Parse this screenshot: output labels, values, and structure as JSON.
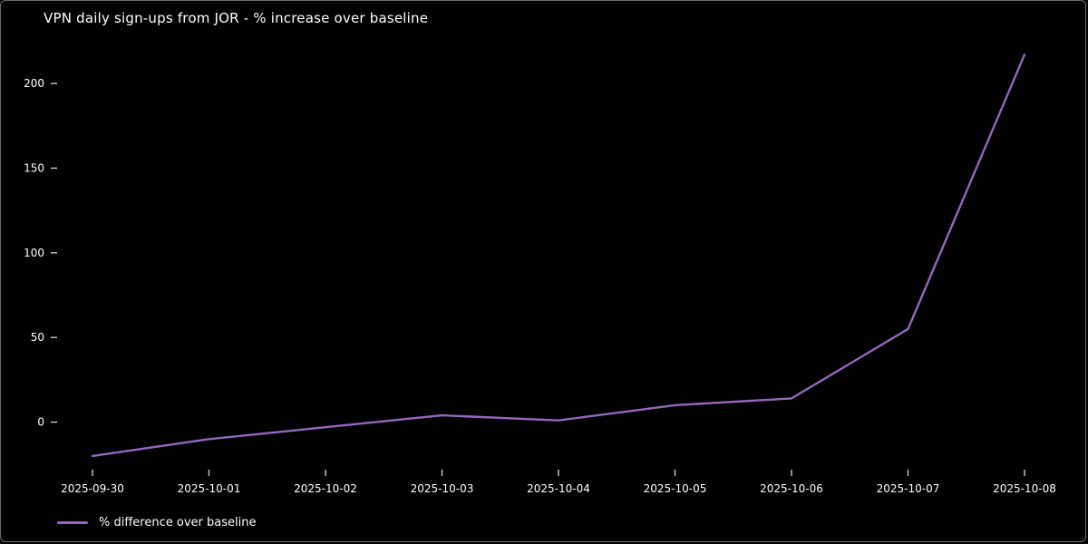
{
  "window": {
    "background": "#000000",
    "border_color": "#6e6e6e"
  },
  "chart_data": {
    "type": "line",
    "title": "VPN daily sign-ups from JOR - % increase over baseline",
    "xlabel": "",
    "ylabel": "",
    "categories": [
      "2025-09-30",
      "2025-10-01",
      "2025-10-02",
      "2025-10-03",
      "2025-10-04",
      "2025-10-05",
      "2025-10-06",
      "2025-10-07",
      "2025-10-08"
    ],
    "series": [
      {
        "name": "% difference over baseline",
        "color": "#9467bd",
        "values": [
          -20,
          -10,
          -3,
          4,
          1,
          10,
          14,
          55,
          217
        ]
      }
    ],
    "yticks": [
      0,
      50,
      100,
      150,
      200
    ],
    "ylim": [
      -27,
      222
    ],
    "grid": false,
    "legend_position": "bottom-left",
    "text_color": "#ffffff",
    "tick_color": "#cccccc"
  }
}
